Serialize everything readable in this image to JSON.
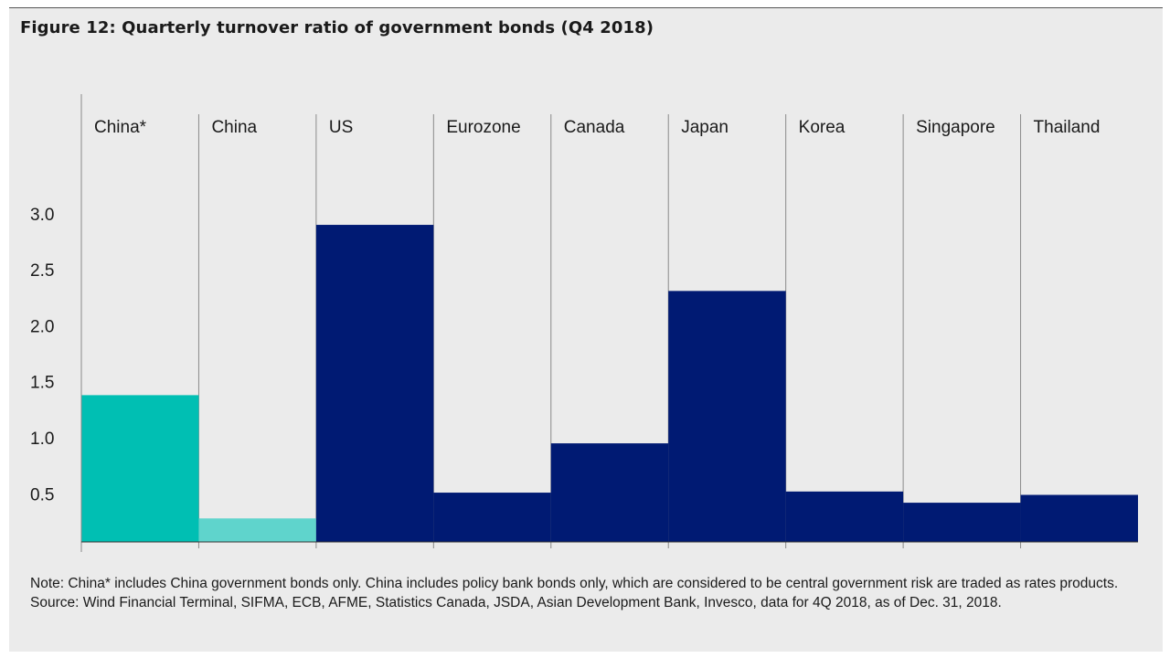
{
  "title": "Figure 12: Quarterly turnover ratio of government bonds (Q4 2018)",
  "colors": {
    "china_star": "#00bfb3",
    "china": "#5fd4cc",
    "others": "#001a73",
    "background": "#ebebeb",
    "divider": "#8a8a8a"
  },
  "chart_data": {
    "type": "bar",
    "categories": [
      "China*",
      "China",
      "US",
      "Eurozone",
      "Canada",
      "Japan",
      "Korea",
      "Singapore",
      "Thailand"
    ],
    "values": [
      1.38,
      0.28,
      2.9,
      0.51,
      0.95,
      2.31,
      0.52,
      0.42,
      0.49
    ],
    "bar_colors": [
      "#00bfb3",
      "#5fd4cc",
      "#001a73",
      "#001a73",
      "#001a73",
      "#001a73",
      "#001a73",
      "#001a73",
      "#001a73"
    ],
    "yticks": [
      "0.5",
      "1.0",
      "1.5",
      "2.0",
      "2.5",
      "3.0"
    ],
    "ylim": [
      0.07,
      3.4
    ],
    "grid": false
  },
  "notes": {
    "note": "Note: China* includes China government bonds only. China includes policy bank bonds only, which are considered to be central government risk are traded as rates products.",
    "source": "Source: Wind Financial Terminal, SIFMA, ECB, AFME, Statistics Canada, JSDA, Asian Development Bank, Invesco, data for 4Q 2018, as of Dec. 31, 2018."
  }
}
